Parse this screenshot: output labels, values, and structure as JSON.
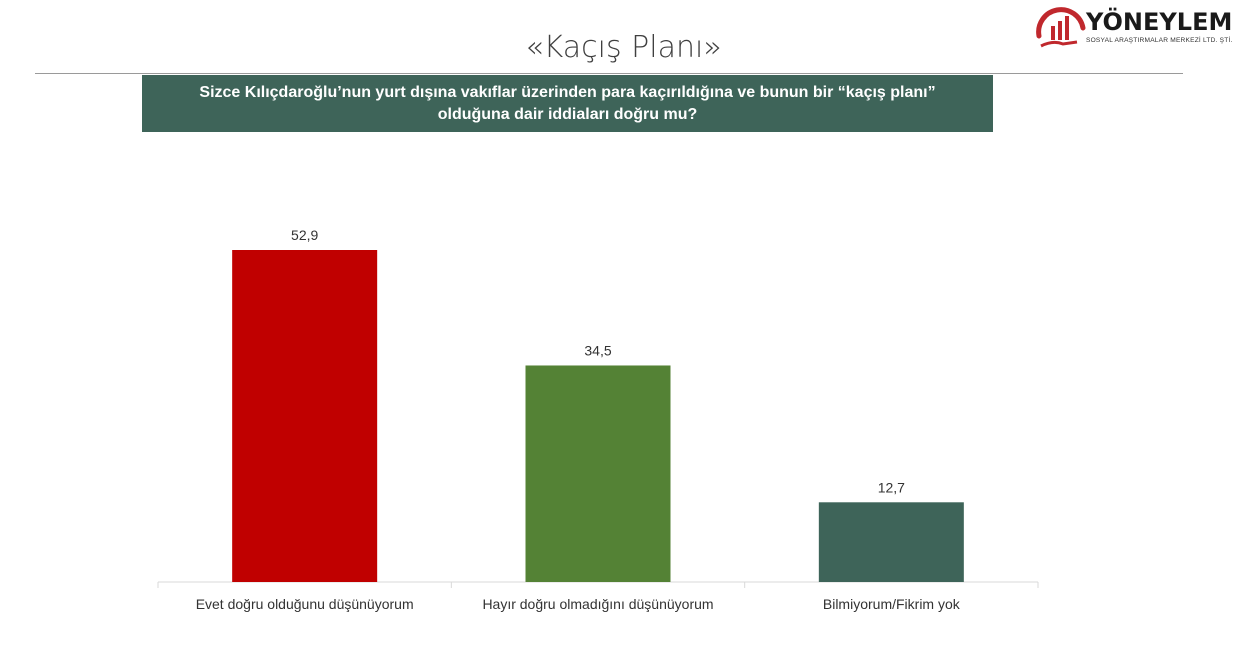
{
  "header": {
    "title": "«Kaçış Planı»",
    "question": "Sizce Kılıçdaroğlu’nun yurt dışına vakıflar üzerinden para kaçırıldığına ve bunun bir “kaçış planı” olduğuna dair iddiaları doğru mu?"
  },
  "logo": {
    "brand": "YÖNEYLEM",
    "subtitle": "SOSYAL ARAŞTIRMALAR MERKEZİ LTD. ŞTİ.",
    "accent_color": "#c0282d"
  },
  "chart_data": {
    "type": "bar",
    "categories": [
      "Evet doğru olduğunu düşünüyorum",
      "Hayır doğru olmadığını düşünüyorum",
      "Bilmiyorum/Fikrim yok"
    ],
    "values": [
      52.9,
      34.5,
      12.7
    ],
    "value_labels": [
      "52,9",
      "34,5",
      "12,7"
    ],
    "colors": [
      "#c00000",
      "#548235",
      "#3e6459"
    ],
    "ylim": [
      0,
      60
    ],
    "grid": false,
    "legend": "none"
  }
}
